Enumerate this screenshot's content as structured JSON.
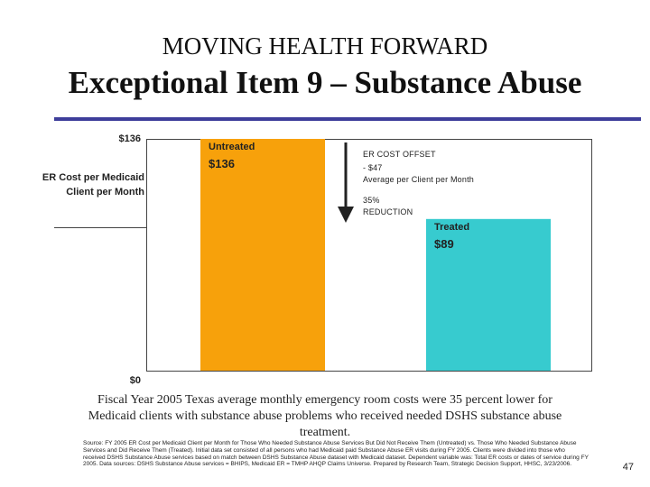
{
  "header": {
    "title_top": "MOVING HEALTH FORWARD",
    "title_main": "Exceptional Item 9 – Substance Abuse"
  },
  "chart_data": {
    "type": "bar",
    "categories": [
      "Untreated",
      "Treated"
    ],
    "values": [
      136,
      89
    ],
    "value_labels": [
      "$136",
      "$89"
    ],
    "ylabel": "ER Cost per Medicaid Client per Month",
    "ylim": [
      0,
      136
    ],
    "yticks": [
      "$136",
      "$0"
    ],
    "colors": [
      "#f7a10b",
      "#37cbcf"
    ],
    "annotation": {
      "title": "ER COST OFFSET",
      "value": "- $47",
      "detail": "Average per Client per Month",
      "percent": "35%",
      "percent_label": "REDUCTION"
    }
  },
  "caption": "Fiscal Year 2005 Texas average monthly emergency room costs were 35 percent lower for Medicaid clients with substance abuse problems who received needed DSHS substance abuse treatment.",
  "source": "Source: FY 2005 ER Cost per Medicaid Client per Month for Those Who Needed Substance Abuse Services But Did Not Receive Them (Untreated) vs. Those Who Needed Substance Abuse Services and Did Receive Them (Treated). Initial data set consisted of all persons who had Medicaid paid Substance Abuse ER visits during FY 2005. Clients were divided into those who received DSHS Substance Abuse services based on match between DSHS Substance Abuse dataset with Medicaid dataset. Dependent variable was: Total ER costs or dates of service during FY 2005. Data sources: DSHS Substance Abuse services = BHIPS, Medicaid ER = TMHP AHQP Claims Universe. Prepared by Research Team, Strategic Decision Support, HHSC, 3/23/2006.",
  "page_number": "47"
}
